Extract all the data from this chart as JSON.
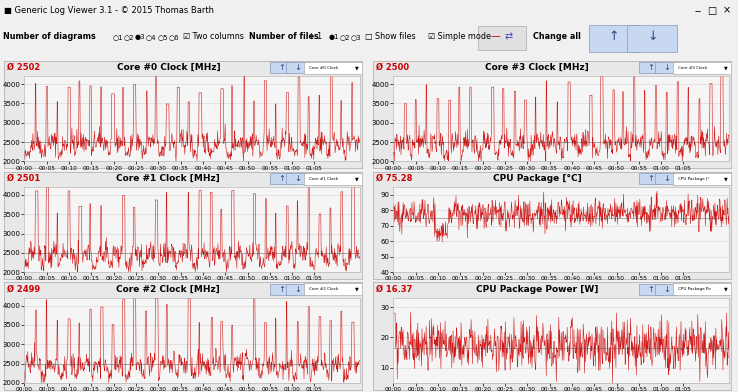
{
  "title_bar": "Generic Log Viewer 3.1 - © 2015 Thomas Barth",
  "panels": [
    {
      "title": "Core #0 Clock [MHz]",
      "avg": "2502",
      "ymin": 2000,
      "ymax": 4200,
      "yticks": [
        2000,
        2500,
        3000,
        3500,
        4000
      ],
      "color": "#cc0000"
    },
    {
      "title": "Core #3 Clock [MHz]",
      "avg": "2500",
      "ymin": 2000,
      "ymax": 4200,
      "yticks": [
        2000,
        2500,
        3000,
        3500,
        4000
      ],
      "color": "#cc0000"
    },
    {
      "title": "Core #1 Clock [MHz]",
      "avg": "2501",
      "ymin": 2000,
      "ymax": 4200,
      "yticks": [
        2000,
        2500,
        3000,
        3500,
        4000
      ],
      "color": "#cc0000"
    },
    {
      "title": "CPU Package [°C]",
      "avg": "75.28",
      "ymin": 40,
      "ymax": 95,
      "yticks": [
        40,
        50,
        60,
        70,
        80,
        90
      ],
      "color": "#cc0000"
    },
    {
      "title": "Core #2 Clock [MHz]",
      "avg": "2499",
      "ymin": 2000,
      "ymax": 4200,
      "yticks": [
        2000,
        2500,
        3000,
        3500,
        4000
      ],
      "color": "#cc0000"
    },
    {
      "title": "CPU Package Power [W]",
      "avg": "16.37",
      "ymin": 5,
      "ymax": 33,
      "yticks": [
        10,
        20,
        30
      ],
      "color": "#cc0000"
    }
  ],
  "line_color": "#cc0000",
  "avg_color": "#cc0000",
  "bg_color": "#f0f0f0",
  "panel_bg": "#e8e8e8",
  "plot_bg": "#f5f5f5",
  "grid_color": "#cccccc",
  "title_bg": "#d0d0d0",
  "n_points": 800,
  "seed": 42,
  "total_seconds": 4510,
  "tick_minutes": [
    0,
    5,
    10,
    15,
    20,
    25,
    30,
    35,
    40,
    45,
    50,
    55,
    60,
    65
  ]
}
